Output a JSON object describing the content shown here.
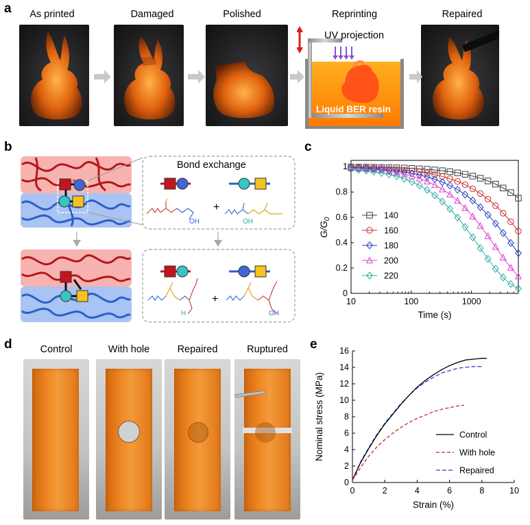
{
  "panel_a": {
    "label": "a",
    "steps": [
      "As printed",
      "Damaged",
      "Polished",
      "Reprinting",
      "Repaired"
    ],
    "uv_label": "UV projection",
    "resin_label": "Liquid BER resin"
  },
  "panel_b": {
    "label": "b",
    "bond_exchange": "Bond exchange",
    "plus": "+",
    "oh": "OH",
    "o": "O",
    "h": "H"
  },
  "panel_d": {
    "label": "d",
    "captions": [
      "Control",
      "With hole",
      "Repaired",
      "Ruptured"
    ]
  },
  "chart_data": [
    {
      "panel": "c",
      "type": "line",
      "xlabel": "Time (s)",
      "ylabel_main": "G/G",
      "ylabel_sub": "0",
      "xscale": "log",
      "xlim": [
        10,
        6000
      ],
      "ylim": [
        0,
        1.05
      ],
      "xticks": [
        "10",
        "100",
        "1000"
      ],
      "yticks": [
        "0",
        "0.2",
        "0.4",
        "0.6",
        "0.8",
        "1"
      ],
      "legend_position": "left",
      "series": [
        {
          "name": "140",
          "color": "#3a3a3a",
          "marker": "square",
          "tau": 32000,
          "beta": 0.75
        },
        {
          "name": "160",
          "color": "#cc2b2b",
          "marker": "circle",
          "tau": 9500,
          "beta": 0.75
        },
        {
          "name": "180",
          "color": "#1f3fbf",
          "marker": "diamond",
          "tau": 5000,
          "beta": 0.75
        },
        {
          "name": "200",
          "color": "#e040d0",
          "marker": "triangle",
          "tau": 2500,
          "beta": 0.8
        },
        {
          "name": "220",
          "color": "#2aa8a0",
          "marker": "diamond",
          "tau": 1350,
          "beta": 0.8
        }
      ]
    },
    {
      "panel": "e",
      "type": "line",
      "xlabel": "Strain (%)",
      "ylabel": "Nominal stress (MPa)",
      "xlim": [
        0,
        10
      ],
      "ylim": [
        0,
        16
      ],
      "xticks": [
        "0",
        "2",
        "4",
        "6",
        "8",
        "10"
      ],
      "yticks": [
        "0",
        "2",
        "4",
        "6",
        "8",
        "10",
        "12",
        "14",
        "16"
      ],
      "legend_position": "bottom-right",
      "series": [
        {
          "name": "Control",
          "color": "#000000",
          "dash": "none",
          "x": [
            0,
            0.5,
            1,
            1.5,
            2,
            2.5,
            3,
            3.5,
            4,
            4.5,
            5,
            5.5,
            6,
            6.5,
            7,
            7.5,
            8,
            8.3
          ],
          "y": [
            0.3,
            2.4,
            4.1,
            5.7,
            7.1,
            8.3,
            9.5,
            10.6,
            11.6,
            12.4,
            13.1,
            13.7,
            14.2,
            14.6,
            14.9,
            15.0,
            15.1,
            15.1
          ]
        },
        {
          "name": "With hole",
          "color": "#c0282d",
          "dash": "5,3",
          "x": [
            0,
            0.5,
            1,
            1.5,
            2,
            2.5,
            3,
            3.5,
            4,
            4.5,
            5,
            5.5,
            6,
            6.5,
            6.9
          ],
          "y": [
            0.3,
            1.8,
            3.2,
            4.3,
            5.2,
            6.0,
            6.7,
            7.3,
            7.8,
            8.2,
            8.6,
            8.9,
            9.1,
            9.3,
            9.4
          ]
        },
        {
          "name": "Repaired",
          "color": "#2c3fd6",
          "dash": "6,3",
          "x": [
            0,
            0.5,
            1,
            1.5,
            2,
            2.5,
            3,
            3.5,
            4,
            4.5,
            5,
            5.5,
            6,
            6.5,
            7,
            7.5,
            8
          ],
          "y": [
            0.3,
            2.5,
            4.2,
            5.8,
            7.2,
            8.4,
            9.6,
            10.6,
            11.5,
            12.2,
            12.8,
            13.3,
            13.6,
            13.9,
            14.0,
            14.1,
            14.1
          ]
        }
      ]
    }
  ]
}
